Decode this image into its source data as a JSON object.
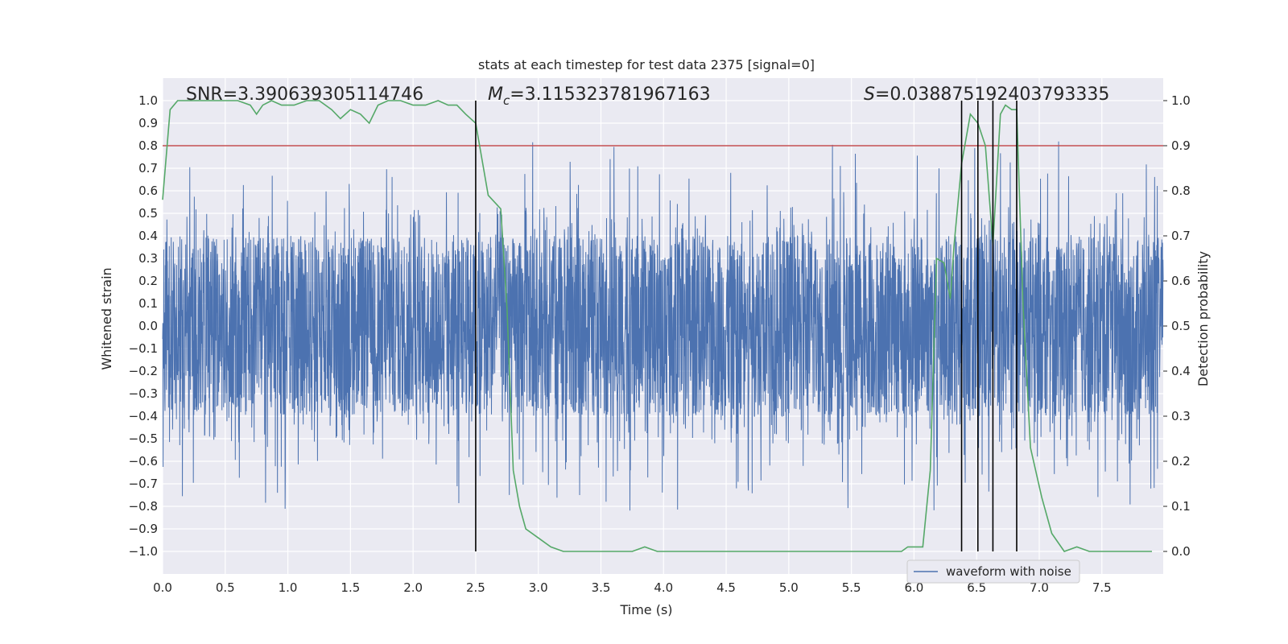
{
  "chart_data": {
    "type": "line",
    "title": "stats at each timestep for test data 2375 [signal=0]",
    "xlabel": "Time (s)",
    "ylabel_left": "Whitened strain",
    "ylabel_right": "Detection probability",
    "xlim": [
      0,
      7.99
    ],
    "ylim_left": [
      -1.1,
      1.1
    ],
    "ylim_right": [
      -0.05,
      1.05
    ],
    "x_ticks": [
      "0.0",
      "0.5",
      "1.0",
      "1.5",
      "2.0",
      "2.5",
      "3.0",
      "3.5",
      "4.0",
      "4.5",
      "5.0",
      "5.5",
      "6.0",
      "6.5",
      "7.0",
      "7.5"
    ],
    "y_left_ticks": [
      "1.0",
      "0.9",
      "0.8",
      "0.7",
      "0.6",
      "0.5",
      "0.4",
      "0.3",
      "0.2",
      "0.1",
      "0.0",
      "−0.1",
      "−0.2",
      "−0.3",
      "−0.4",
      "−0.5",
      "−0.6",
      "−0.7",
      "−0.8",
      "−0.9",
      "−1.0"
    ],
    "y_right_ticks": [
      "1.0",
      "0.9",
      "0.8",
      "0.7",
      "0.6",
      "0.5",
      "0.4",
      "0.3",
      "0.2",
      "0.1",
      "0.0"
    ],
    "grid": true,
    "legend": {
      "position": "lower-right",
      "entries": [
        {
          "label": "waveform with noise",
          "color": "#4c72b0"
        }
      ]
    },
    "colors": {
      "background": "#eaeaf2",
      "waveform": "#4c72b0",
      "probability": "#55a868",
      "threshold": "#c44e52",
      "markers": "#000000"
    },
    "annotations": {
      "snr": "SNR=3.390639305114746",
      "mc_symbol": "M",
      "mc_sub": "c",
      "mc_value": "=3.115323781967163",
      "s_symbol": "S",
      "s_value": "=0.038875192403793335"
    },
    "threshold_line": {
      "axis": "left",
      "y": 0.8
    },
    "vertical_lines": {
      "x": [
        2.5,
        6.38,
        6.51,
        6.63,
        6.82
      ],
      "ymin": -1.0,
      "ymax": 1.0
    },
    "waveform": {
      "name": "waveform with noise",
      "axis": "left",
      "band": [
        -0.4,
        0.4
      ],
      "typical_peak": 0.6,
      "max_peak": 1.0,
      "duration": 7.99
    },
    "detection_probability": {
      "axis": "right",
      "x": [
        0.0,
        0.06,
        0.12,
        0.2,
        0.3,
        0.4,
        0.5,
        0.6,
        0.7,
        0.75,
        0.8,
        0.87,
        0.95,
        1.05,
        1.15,
        1.25,
        1.35,
        1.42,
        1.5,
        1.58,
        1.65,
        1.72,
        1.8,
        1.9,
        2.0,
        2.1,
        2.2,
        2.28,
        2.35,
        2.42,
        2.5,
        2.55,
        2.6,
        2.7,
        2.75,
        2.8,
        2.85,
        2.9,
        3.0,
        3.1,
        3.2,
        3.4,
        3.6,
        3.75,
        3.85,
        3.95,
        4.0,
        4.2,
        4.3,
        4.5,
        4.7,
        4.9,
        5.0,
        5.2,
        5.4,
        5.6,
        5.8,
        5.9,
        5.95,
        6.0,
        6.07,
        6.13,
        6.18,
        6.24,
        6.29,
        6.32,
        6.38,
        6.45,
        6.51,
        6.57,
        6.63,
        6.69,
        6.73,
        6.78,
        6.82,
        6.87,
        6.93,
        7.02,
        7.1,
        7.2,
        7.3,
        7.4,
        7.5,
        7.6,
        7.7,
        7.8,
        7.9
      ],
      "y": [
        0.78,
        0.98,
        1.0,
        1.0,
        1.0,
        1.0,
        1.0,
        1.0,
        0.99,
        0.97,
        0.99,
        1.0,
        0.99,
        0.99,
        1.0,
        1.0,
        0.98,
        0.96,
        0.98,
        0.97,
        0.95,
        0.99,
        1.0,
        1.0,
        0.99,
        0.99,
        1.0,
        0.99,
        0.99,
        0.97,
        0.95,
        0.87,
        0.79,
        0.76,
        0.54,
        0.18,
        0.1,
        0.05,
        0.03,
        0.01,
        0.0,
        0.0,
        0.0,
        0.0,
        0.01,
        0.0,
        0.0,
        0.0,
        0.0,
        0.0,
        0.0,
        0.0,
        0.0,
        0.0,
        0.0,
        0.0,
        0.0,
        0.0,
        0.01,
        0.01,
        0.01,
        0.18,
        0.65,
        0.64,
        0.56,
        0.68,
        0.86,
        0.97,
        0.95,
        0.9,
        0.68,
        0.97,
        0.99,
        0.98,
        0.98,
        0.55,
        0.23,
        0.12,
        0.04,
        0.0,
        0.01,
        0.0,
        0.0,
        0.0,
        0.0,
        0.0,
        0.0
      ]
    }
  }
}
